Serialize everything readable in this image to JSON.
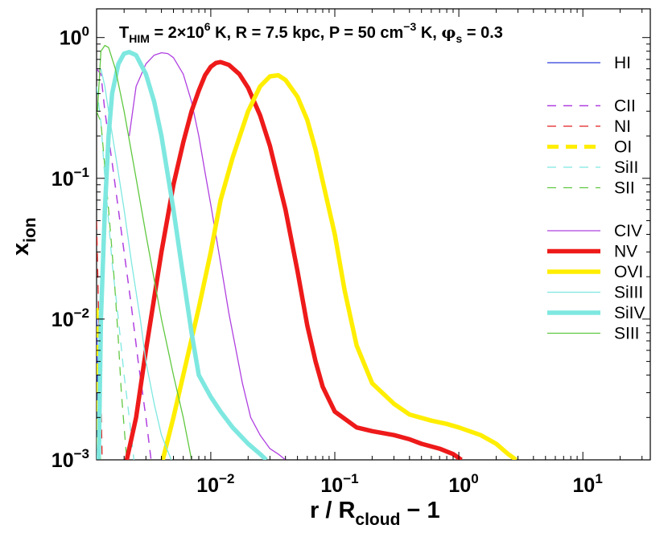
{
  "chart_data": {
    "type": "line",
    "title": {
      "t_prefix": "T",
      "t_sub": "HIM",
      "t_eq": " = 2×10",
      "t_sup": "6",
      "t_after": " K,  R = 7.5 kpc,  P = 50 cm",
      "p_sup": "−3",
      "p_after": " K,  ",
      "phi": "φ",
      "phi_sub": "s",
      "phi_after": " = 0.3"
    },
    "xlabel": {
      "main": "r / R",
      "sub": "cloud",
      "after": " − 1"
    },
    "ylabel": {
      "main": "x",
      "sub": "ion"
    },
    "x_scale": "log",
    "y_scale": "log",
    "xlim": [
      0.0012,
      35
    ],
    "ylim": [
      0.001,
      1.6
    ],
    "x_ticks": [
      {
        "value": 0.01,
        "base": "10",
        "exp": "−2"
      },
      {
        "value": 0.1,
        "base": "10",
        "exp": "−1"
      },
      {
        "value": 1,
        "label": "10",
        "exp_text": "0"
      },
      {
        "value": 10,
        "label": "10",
        "exp_text": "1"
      }
    ],
    "y_ticks": [
      {
        "value": 1,
        "base": "10",
        "exp": "0"
      },
      {
        "value": 0.1,
        "base": "10",
        "exp": "−1"
      },
      {
        "value": 0.01,
        "base": "10",
        "exp": "−2"
      },
      {
        "value": 0.001,
        "base": "10",
        "exp": "−3"
      }
    ],
    "legend_position": "right",
    "series": [
      {
        "name": "HI",
        "color": "#2c3cdc",
        "width": 1.3,
        "dash": "solid",
        "legend_gap": 0,
        "points": [
          [
            0.0012,
            0.012
          ],
          [
            0.00123,
            0.002
          ],
          [
            0.00125,
            0.001
          ]
        ]
      },
      {
        "name": "CII",
        "color": "#b040e0",
        "width": 1.5,
        "dash": "dashed",
        "legend_gap": 1,
        "points": [
          [
            0.0012,
            0.6
          ],
          [
            0.0013,
            0.55
          ],
          [
            0.0014,
            0.3
          ],
          [
            0.0016,
            0.13
          ],
          [
            0.0018,
            0.06
          ],
          [
            0.002,
            0.03
          ],
          [
            0.0023,
            0.012
          ],
          [
            0.0026,
            0.005
          ],
          [
            0.003,
            0.002
          ],
          [
            0.0033,
            0.001
          ]
        ]
      },
      {
        "name": "NI",
        "color": "#e02020",
        "width": 1.3,
        "dash": "dashed",
        "legend_gap": 0,
        "points": [
          [
            0.0012,
            0.05
          ],
          [
            0.00125,
            0.01
          ],
          [
            0.0013,
            0.003
          ],
          [
            0.00133,
            0.001
          ]
        ]
      },
      {
        "name": "OI",
        "color": "#ffee00",
        "width": 5,
        "dash": "dashed",
        "legend_gap": 0,
        "points": [
          [
            0.0012,
            0.012
          ],
          [
            0.00122,
            0.004
          ],
          [
            0.00124,
            0.0015
          ],
          [
            0.00126,
            0.001
          ]
        ]
      },
      {
        "name": "SiII",
        "color": "#7ee8e0",
        "width": 1.3,
        "dash": "dashed",
        "legend_gap": 0,
        "points": [
          [
            0.0012,
            0.45
          ],
          [
            0.0013,
            0.25
          ],
          [
            0.0014,
            0.1
          ],
          [
            0.0015,
            0.05
          ],
          [
            0.0016,
            0.025
          ],
          [
            0.0018,
            0.01
          ],
          [
            0.002,
            0.004
          ],
          [
            0.0022,
            0.002
          ],
          [
            0.0024,
            0.001
          ]
        ]
      },
      {
        "name": "SII",
        "color": "#60c840",
        "width": 1.3,
        "dash": "dashed",
        "legend_gap": 0,
        "points": [
          [
            0.0012,
            0.3
          ],
          [
            0.0013,
            0.25
          ],
          [
            0.0014,
            0.12
          ],
          [
            0.0015,
            0.06
          ],
          [
            0.0016,
            0.03
          ],
          [
            0.0017,
            0.015
          ],
          [
            0.0018,
            0.007
          ],
          [
            0.0019,
            0.003
          ],
          [
            0.0021,
            0.001
          ]
        ]
      },
      {
        "name": "CIV",
        "color": "#b040e0",
        "width": 1.3,
        "dash": "solid",
        "legend_gap": 1,
        "points": [
          [
            0.0022,
            0.2
          ],
          [
            0.0025,
            0.45
          ],
          [
            0.003,
            0.65
          ],
          [
            0.0035,
            0.75
          ],
          [
            0.004,
            0.78
          ],
          [
            0.0045,
            0.77
          ],
          [
            0.005,
            0.72
          ],
          [
            0.006,
            0.55
          ],
          [
            0.007,
            0.35
          ],
          [
            0.008,
            0.2
          ],
          [
            0.009,
            0.11
          ],
          [
            0.01,
            0.065
          ],
          [
            0.012,
            0.025
          ],
          [
            0.014,
            0.011
          ],
          [
            0.016,
            0.006
          ],
          [
            0.018,
            0.0035
          ],
          [
            0.021,
            0.002
          ],
          [
            0.025,
            0.0015
          ],
          [
            0.03,
            0.0012
          ],
          [
            0.035,
            0.0011
          ],
          [
            0.04,
            0.001
          ]
        ]
      },
      {
        "name": "NV",
        "color": "#ee1a1a",
        "width": 5.5,
        "dash": "solid",
        "legend_gap": 0,
        "points": [
          [
            0.0021,
            0.001
          ],
          [
            0.0025,
            0.002
          ],
          [
            0.003,
            0.006
          ],
          [
            0.004,
            0.03
          ],
          [
            0.005,
            0.09
          ],
          [
            0.006,
            0.18
          ],
          [
            0.007,
            0.3
          ],
          [
            0.008,
            0.42
          ],
          [
            0.009,
            0.54
          ],
          [
            0.01,
            0.62
          ],
          [
            0.011,
            0.66
          ],
          [
            0.012,
            0.67
          ],
          [
            0.014,
            0.64
          ],
          [
            0.017,
            0.55
          ],
          [
            0.02,
            0.44
          ],
          [
            0.025,
            0.28
          ],
          [
            0.03,
            0.17
          ],
          [
            0.04,
            0.06
          ],
          [
            0.05,
            0.022
          ],
          [
            0.06,
            0.009
          ],
          [
            0.07,
            0.005
          ],
          [
            0.08,
            0.0033
          ],
          [
            0.1,
            0.0022
          ],
          [
            0.15,
            0.0017
          ],
          [
            0.2,
            0.0016
          ],
          [
            0.3,
            0.0015
          ],
          [
            0.4,
            0.0014
          ],
          [
            0.5,
            0.0013
          ],
          [
            0.7,
            0.0012
          ],
          [
            0.9,
            0.0011
          ],
          [
            1.05,
            0.001
          ]
        ]
      },
      {
        "name": "OVI",
        "color": "#ffee00",
        "width": 5.5,
        "dash": "solid",
        "legend_gap": 0,
        "points": [
          [
            0.0041,
            0.001
          ],
          [
            0.005,
            0.002
          ],
          [
            0.006,
            0.004
          ],
          [
            0.008,
            0.012
          ],
          [
            0.01,
            0.03
          ],
          [
            0.012,
            0.07
          ],
          [
            0.015,
            0.14
          ],
          [
            0.02,
            0.3
          ],
          [
            0.025,
            0.45
          ],
          [
            0.03,
            0.53
          ],
          [
            0.035,
            0.54
          ],
          [
            0.04,
            0.5
          ],
          [
            0.05,
            0.38
          ],
          [
            0.06,
            0.26
          ],
          [
            0.07,
            0.16
          ],
          [
            0.08,
            0.095
          ],
          [
            0.1,
            0.04
          ],
          [
            0.12,
            0.016
          ],
          [
            0.15,
            0.0065
          ],
          [
            0.2,
            0.0035
          ],
          [
            0.3,
            0.0025
          ],
          [
            0.4,
            0.0021
          ],
          [
            0.6,
            0.0019
          ],
          [
            0.8,
            0.0018
          ],
          [
            1,
            0.0017
          ],
          [
            1.5,
            0.0015
          ],
          [
            2,
            0.0013
          ],
          [
            2.5,
            0.0011
          ],
          [
            2.9,
            0.001
          ]
        ]
      },
      {
        "name": "SiIII",
        "color": "#7ee8e0",
        "width": 1.3,
        "dash": "solid",
        "legend_gap": 0,
        "points": [
          [
            0.0013,
            0.6
          ],
          [
            0.0014,
            0.45
          ],
          [
            0.0015,
            0.3
          ],
          [
            0.0017,
            0.15
          ],
          [
            0.002,
            0.06
          ],
          [
            0.0023,
            0.025
          ],
          [
            0.0027,
            0.01
          ],
          [
            0.003,
            0.005
          ],
          [
            0.0035,
            0.0025
          ],
          [
            0.004,
            0.0015
          ],
          [
            0.0048,
            0.001
          ]
        ]
      },
      {
        "name": "SiIV",
        "color": "#7ee8e0",
        "width": 5.5,
        "dash": "solid",
        "legend_gap": 0,
        "points": [
          [
            0.00125,
            0.001
          ],
          [
            0.0013,
            0.01
          ],
          [
            0.0014,
            0.06
          ],
          [
            0.0015,
            0.2
          ],
          [
            0.0016,
            0.4
          ],
          [
            0.0018,
            0.65
          ],
          [
            0.002,
            0.77
          ],
          [
            0.0022,
            0.79
          ],
          [
            0.0025,
            0.75
          ],
          [
            0.003,
            0.55
          ],
          [
            0.0035,
            0.35
          ],
          [
            0.004,
            0.2
          ],
          [
            0.005,
            0.06
          ],
          [
            0.006,
            0.02
          ],
          [
            0.007,
            0.008
          ],
          [
            0.008,
            0.004
          ],
          [
            0.01,
            0.0028
          ],
          [
            0.012,
            0.0022
          ],
          [
            0.015,
            0.0017
          ],
          [
            0.02,
            0.0013
          ],
          [
            0.025,
            0.0011
          ],
          [
            0.028,
            0.001
          ]
        ]
      },
      {
        "name": "SIII",
        "color": "#60c840",
        "width": 1.3,
        "dash": "solid",
        "legend_gap": 0,
        "points": [
          [
            0.00122,
            0.3
          ],
          [
            0.0013,
            0.8
          ],
          [
            0.0014,
            0.88
          ],
          [
            0.0015,
            0.85
          ],
          [
            0.0017,
            0.6
          ],
          [
            0.002,
            0.3
          ],
          [
            0.0025,
            0.1
          ],
          [
            0.003,
            0.04
          ],
          [
            0.004,
            0.01
          ],
          [
            0.005,
            0.004
          ],
          [
            0.006,
            0.002
          ],
          [
            0.007,
            0.001
          ]
        ]
      }
    ]
  }
}
